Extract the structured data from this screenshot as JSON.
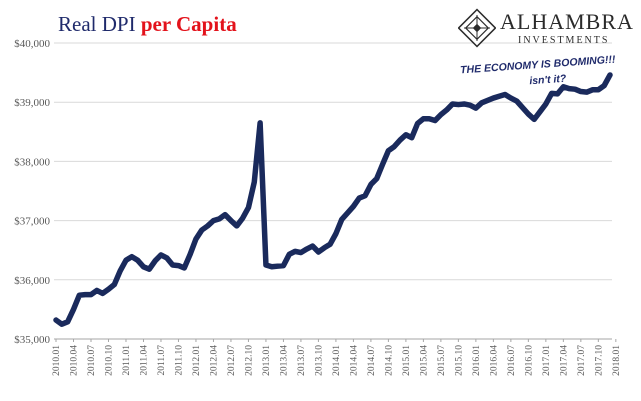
{
  "header": {
    "title_part1": "Real DPI ",
    "title_part2": "per Capita",
    "logo_name": "ALHAMBRA",
    "logo_sub": "INVESTMENTS"
  },
  "colors": {
    "line": "#1a2a5c",
    "title_blue": "#1f2a6b",
    "title_red": "#e3121b",
    "grid": "#d9d9d9",
    "axis_text": "#595959"
  },
  "chart_data": {
    "type": "line",
    "title": "Real DPI per Capita",
    "y_unit": "USD",
    "ylim": [
      35000,
      40000
    ],
    "y_ticks": [
      35000,
      36000,
      37000,
      38000,
      39000,
      40000
    ],
    "y_tick_labels": [
      "$35,000",
      "$36,000",
      "$37,000",
      "$38,000",
      "$39,000",
      "$40,000"
    ],
    "x_tick_labels": [
      "2010.01",
      "2010.04",
      "2010.07",
      "2010.10",
      "2011.01",
      "2011.04",
      "2011.07",
      "2011.10",
      "2012.01",
      "2012.04",
      "2012.07",
      "2012.10",
      "2013.01",
      "2013.04",
      "2013.07",
      "2013.10",
      "2014.01",
      "2014.04",
      "2014.07",
      "2014.10",
      "2015.01",
      "2015.04",
      "2015.07",
      "2015.10",
      "2016.01",
      "2016.04",
      "2016.07",
      "2016.10",
      "2017.01",
      "2017.04",
      "2017.07",
      "2017.10",
      "2018.01"
    ],
    "grid": "horizontal",
    "annotation": {
      "line1": "THE ECONOMY IS BOOMING!!!",
      "line2": "isn't it?"
    },
    "series": [
      {
        "values": [
          35320,
          35250,
          35290,
          35500,
          35740,
          35750,
          35750,
          35820,
          35770,
          35840,
          35920,
          36150,
          36330,
          36390,
          36330,
          36220,
          36180,
          36320,
          36420,
          36370,
          36250,
          36240,
          36200,
          36430,
          36690,
          36840,
          36910,
          37000,
          37030,
          37100,
          37000,
          36910,
          37040,
          37220,
          37650,
          38650,
          36250,
          36220,
          36230,
          36240,
          36430,
          36480,
          36460,
          36520,
          36570,
          36470,
          36540,
          36600,
          36780,
          37020,
          37130,
          37240,
          37380,
          37420,
          37610,
          37710,
          37950,
          38180,
          38250,
          38360,
          38450,
          38400,
          38640,
          38720,
          38720,
          38690,
          38790,
          38870,
          38970,
          38960,
          38970,
          38950,
          38900,
          38990,
          39030,
          39070,
          39100,
          39130,
          39070,
          39020,
          38910,
          38800,
          38710,
          38840,
          38970,
          39150,
          39140,
          39260,
          39230,
          39220,
          39180,
          39170,
          39210,
          39210,
          39280,
          39460
        ]
      }
    ]
  }
}
